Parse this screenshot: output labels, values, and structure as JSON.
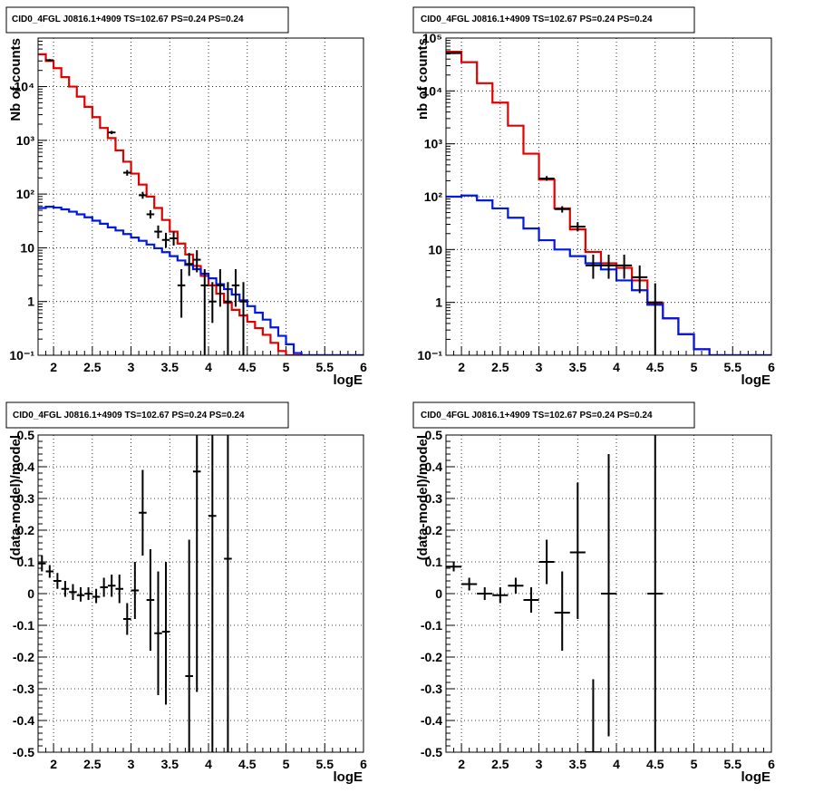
{
  "chart_data": [
    {
      "type": "line",
      "title": "CID0_4FGL J0816.1+4909 TS=102.67 PS=0.24 PS=0.24",
      "xlabel": "logE",
      "ylabel": "Nb of counts",
      "xlim": [
        1.8,
        6.0
      ],
      "ylim": [
        0.1,
        80000
      ],
      "yscale": "log",
      "grid": true,
      "xticks": [
        "2",
        "2.5",
        "3",
        "3.5",
        "4",
        "4.5",
        "5",
        "5.5",
        "6"
      ],
      "yticks": [
        "10^-1",
        "1",
        "10",
        "10^2",
        "10^3",
        "10^4"
      ],
      "bin_edges": [
        1.8,
        1.9,
        2.0,
        2.1,
        2.2,
        2.3,
        2.4,
        2.5,
        2.6,
        2.7,
        2.8,
        2.9,
        3.0,
        3.1,
        3.2,
        3.3,
        3.4,
        3.5,
        3.6,
        3.7,
        3.8,
        3.9,
        4.0,
        4.1,
        4.2,
        4.3,
        4.4,
        4.5,
        4.6,
        4.7,
        4.8,
        4.9,
        5.0,
        5.1,
        5.2,
        5.3,
        5.4,
        5.5,
        5.6,
        5.7,
        5.8,
        5.9,
        6.0
      ],
      "series": [
        {
          "color": "#e00000",
          "style": "step",
          "values": [
            40000,
            30000,
            22000,
            15000,
            10000,
            6500,
            4200,
            2700,
            1700,
            1100,
            650,
            400,
            240,
            150,
            90,
            55,
            33,
            20,
            12,
            7.5,
            4.6,
            3.0,
            2.0,
            1.4,
            0.95,
            0.7,
            0.55,
            0.42,
            0.32,
            0.24,
            0.17,
            0.12,
            0.1,
            0.1,
            0.1,
            0.1,
            0.1,
            0.1,
            0.1,
            0.1,
            0.1,
            0.1
          ]
        },
        {
          "color": "#0018e0",
          "style": "step",
          "values": [
            55,
            58,
            56,
            52,
            47,
            42,
            37,
            32,
            28,
            24,
            21,
            18,
            15.5,
            13.5,
            11.5,
            9.8,
            8.3,
            7.0,
            5.8,
            4.8,
            4.0,
            3.3,
            2.7,
            2.1,
            1.7,
            1.35,
            1.05,
            0.82,
            0.62,
            0.46,
            0.33,
            0.23,
            0.16,
            0.11,
            0.1,
            0.1,
            0.1,
            0.1,
            0.1,
            0.1,
            0.1,
            0.1
          ]
        },
        {
          "color": "#000000",
          "style": "errorbar",
          "points": [
            {
              "x": 1.95,
              "y": 31000,
              "ylo": 29500,
              "yhi": 32500
            },
            {
              "x": 2.75,
              "y": 1400,
              "ylo": 1300,
              "yhi": 1500
            },
            {
              "x": 2.95,
              "y": 250,
              "ylo": 220,
              "yhi": 280
            },
            {
              "x": 3.15,
              "y": 95,
              "ylo": 82,
              "yhi": 110
            },
            {
              "x": 3.25,
              "y": 42,
              "ylo": 35,
              "yhi": 50
            },
            {
              "x": 3.35,
              "y": 20,
              "ylo": 15,
              "yhi": 26
            },
            {
              "x": 3.45,
              "y": 14,
              "ylo": 10,
              "yhi": 19
            },
            {
              "x": 3.55,
              "y": 15,
              "ylo": 11,
              "yhi": 20
            },
            {
              "x": 3.65,
              "y": 2,
              "ylo": 0.5,
              "yhi": 4
            },
            {
              "x": 3.75,
              "y": 5,
              "ylo": 3,
              "yhi": 8
            },
            {
              "x": 3.85,
              "y": 6,
              "ylo": 3.5,
              "yhi": 9
            },
            {
              "x": 3.95,
              "y": 2,
              "ylo": 0.1,
              "yhi": 4
            },
            {
              "x": 4.05,
              "y": 1,
              "ylo": 0.4,
              "yhi": 2.3
            },
            {
              "x": 4.15,
              "y": 2,
              "ylo": 0.8,
              "yhi": 4
            },
            {
              "x": 4.25,
              "y": 1,
              "ylo": 0.1,
              "yhi": 2.3
            },
            {
              "x": 4.35,
              "y": 2,
              "ylo": 0.8,
              "yhi": 4
            },
            {
              "x": 4.45,
              "y": 1,
              "ylo": 0.1,
              "yhi": 2.3
            }
          ]
        }
      ]
    },
    {
      "type": "line",
      "title": "CID0_4FGL J0816.1+4909 TS=102.67 PS=0.24 PS=0.24",
      "xlabel": "logE",
      "ylabel": "nb of counts",
      "xlim": [
        1.8,
        6.0
      ],
      "ylim": [
        0.1,
        100000
      ],
      "yscale": "log",
      "grid": true,
      "xticks": [
        "2",
        "2.5",
        "3",
        "3.5",
        "4",
        "4.5",
        "5",
        "5.5",
        "6"
      ],
      "yticks": [
        "10^-1",
        "1",
        "10",
        "10^2",
        "10^3",
        "10^4",
        "10^5"
      ],
      "bin_edges": [
        1.8,
        2.0,
        2.2,
        2.4,
        2.6,
        2.8,
        3.0,
        3.2,
        3.4,
        3.6,
        3.8,
        4.0,
        4.2,
        4.4,
        4.6,
        4.8,
        5.0,
        5.2,
        5.4,
        5.6,
        5.8,
        6.0
      ],
      "series": [
        {
          "color": "#e00000",
          "style": "step",
          "values": [
            55000,
            35000,
            14000,
            6000,
            2200,
            650,
            210,
            60,
            24,
            9,
            5.5,
            4.5,
            2.6,
            0.95,
            0.5,
            0.25,
            0.13,
            0.1,
            0.1,
            0.1,
            0.1
          ]
        },
        {
          "color": "#0018e0",
          "style": "step",
          "values": [
            100,
            105,
            85,
            60,
            40,
            25,
            15,
            10,
            7.5,
            5.5,
            4.2,
            2.6,
            1.7,
            0.9,
            0.5,
            0.25,
            0.13,
            0.1,
            0.1,
            0.1,
            0.1
          ]
        },
        {
          "color": "#000000",
          "style": "errorbar",
          "points": [
            {
              "x": 1.9,
              "y": 52000,
              "ylo": 50000,
              "yhi": 54000
            },
            {
              "x": 3.1,
              "y": 220,
              "ylo": 200,
              "yhi": 245
            },
            {
              "x": 3.3,
              "y": 58,
              "ylo": 50,
              "yhi": 66
            },
            {
              "x": 3.5,
              "y": 27,
              "ylo": 22,
              "yhi": 33
            },
            {
              "x": 3.7,
              "y": 5,
              "ylo": 2.8,
              "yhi": 8
            },
            {
              "x": 3.9,
              "y": 5,
              "ylo": 2.8,
              "yhi": 8
            },
            {
              "x": 4.1,
              "y": 5,
              "ylo": 2.8,
              "yhi": 8
            },
            {
              "x": 4.3,
              "y": 3,
              "ylo": 1.5,
              "yhi": 5
            },
            {
              "x": 4.5,
              "y": 1,
              "ylo": 0.1,
              "yhi": 2.3
            }
          ]
        }
      ]
    },
    {
      "type": "scatter",
      "title": "CID0_4FGL J0816.1+4909 TS=102.67 PS=0.24 PS=0.24",
      "xlabel": "logE",
      "ylabel": "(data-model)/model",
      "xlim": [
        1.8,
        6.0
      ],
      "ylim": [
        -0.5,
        0.5
      ],
      "grid": true,
      "xticks": [
        "2",
        "2.5",
        "3",
        "3.5",
        "4",
        "4.5",
        "5",
        "5.5",
        "6"
      ],
      "yticks": [
        "-0.5",
        "-0.4",
        "-0.3",
        "-0.2",
        "-0.1",
        "0",
        "0.1",
        "0.2",
        "0.3",
        "0.4",
        "0.5"
      ],
      "points": [
        {
          "x": 1.85,
          "y": 0.095,
          "ylo": 0.07,
          "yhi": 0.12
        },
        {
          "x": 1.95,
          "y": 0.07,
          "ylo": 0.05,
          "yhi": 0.09
        },
        {
          "x": 2.05,
          "y": 0.04,
          "ylo": 0.015,
          "yhi": 0.065
        },
        {
          "x": 2.15,
          "y": 0.015,
          "ylo": -0.01,
          "yhi": 0.04
        },
        {
          "x": 2.25,
          "y": 0.005,
          "ylo": -0.02,
          "yhi": 0.03
        },
        {
          "x": 2.35,
          "y": -0.005,
          "ylo": -0.025,
          "yhi": 0.02
        },
        {
          "x": 2.45,
          "y": 0.0,
          "ylo": -0.02,
          "yhi": 0.02
        },
        {
          "x": 2.55,
          "y": -0.01,
          "ylo": -0.03,
          "yhi": 0.015
        },
        {
          "x": 2.65,
          "y": 0.02,
          "ylo": -0.01,
          "yhi": 0.05
        },
        {
          "x": 2.75,
          "y": 0.025,
          "ylo": -0.01,
          "yhi": 0.06
        },
        {
          "x": 2.85,
          "y": 0.015,
          "ylo": -0.03,
          "yhi": 0.06
        },
        {
          "x": 2.95,
          "y": -0.08,
          "ylo": -0.13,
          "yhi": -0.03
        },
        {
          "x": 3.05,
          "y": 0.01,
          "ylo": -0.08,
          "yhi": 0.1
        },
        {
          "x": 3.15,
          "y": 0.255,
          "ylo": 0.12,
          "yhi": 0.39
        },
        {
          "x": 3.25,
          "y": -0.02,
          "ylo": -0.18,
          "yhi": 0.14
        },
        {
          "x": 3.35,
          "y": -0.125,
          "ylo": -0.32,
          "yhi": 0.07
        },
        {
          "x": 3.45,
          "y": -0.12,
          "ylo": -0.35,
          "yhi": 0.1
        },
        {
          "x": 3.75,
          "y": -0.26,
          "ylo": -0.5,
          "yhi": 0.17
        },
        {
          "x": 3.85,
          "y": 0.385,
          "ylo": -0.31,
          "yhi": 0.5
        },
        {
          "x": 4.05,
          "y": 0.245,
          "ylo": -0.5,
          "yhi": 0.5
        },
        {
          "x": 4.25,
          "y": 0.11,
          "ylo": -0.5,
          "yhi": 0.5
        }
      ]
    },
    {
      "type": "scatter",
      "title": "CID0_4FGL J0816.1+4909 TS=102.67 PS=0.24 PS=0.24",
      "xlabel": "logE",
      "ylabel": "(data-model)/model",
      "xlim": [
        1.8,
        6.0
      ],
      "ylim": [
        -0.5,
        0.5
      ],
      "grid": true,
      "xticks": [
        "2",
        "2.5",
        "3",
        "3.5",
        "4",
        "4.5",
        "5",
        "5.5",
        "6"
      ],
      "yticks": [
        "-0.5",
        "-0.4",
        "-0.3",
        "-0.2",
        "-0.1",
        "0",
        "0.1",
        "0.2",
        "0.3",
        "0.4",
        "0.5"
      ],
      "points": [
        {
          "x": 1.9,
          "y": 0.085,
          "ylo": 0.07,
          "yhi": 0.1
        },
        {
          "x": 2.1,
          "y": 0.03,
          "ylo": 0.01,
          "yhi": 0.05
        },
        {
          "x": 2.3,
          "y": 0.0,
          "ylo": -0.02,
          "yhi": 0.02
        },
        {
          "x": 2.5,
          "y": -0.005,
          "ylo": -0.03,
          "yhi": 0.02
        },
        {
          "x": 2.7,
          "y": 0.025,
          "ylo": 0.0,
          "yhi": 0.05
        },
        {
          "x": 2.9,
          "y": -0.02,
          "ylo": -0.06,
          "yhi": 0.02
        },
        {
          "x": 3.1,
          "y": 0.1,
          "ylo": 0.03,
          "yhi": 0.17
        },
        {
          "x": 3.3,
          "y": -0.06,
          "ylo": -0.18,
          "yhi": 0.07
        },
        {
          "x": 3.5,
          "y": 0.13,
          "ylo": -0.08,
          "yhi": 0.35
        },
        {
          "x": 3.7,
          "y": -0.5,
          "ylo": -0.5,
          "yhi": -0.27
        },
        {
          "x": 3.9,
          "y": 0.0,
          "ylo": -0.45,
          "yhi": 0.44
        },
        {
          "x": 4.5,
          "y": 0.0,
          "ylo": -0.5,
          "yhi": 0.5
        }
      ]
    }
  ]
}
